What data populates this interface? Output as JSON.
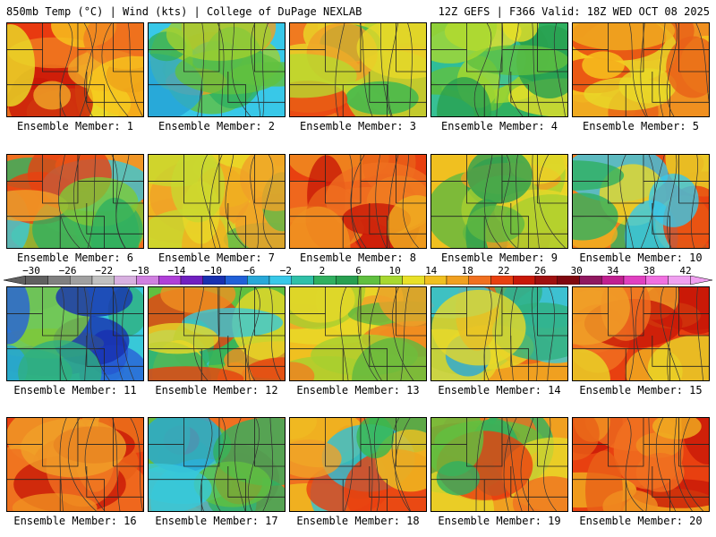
{
  "header": {
    "left": "850mb Temp (°C) | Wind (kts) | College of DuPage NEXLAB",
    "right": "12Z GEFS | F366 Valid: 18Z WED OCT 08 2025"
  },
  "panel_label_prefix": "Ensemble Member: ",
  "members": [
    {
      "label": "Ensemble Member: 1",
      "palette": [
        "#e83a10",
        "#c81808",
        "#f08020",
        "#f0a828",
        "#f7c81e",
        "#e8e028"
      ]
    },
    {
      "label": "Ensemble Member: 2",
      "palette": [
        "#38c8e8",
        "#28a8d8",
        "#30b060",
        "#60c040",
        "#a0d030",
        "#f0a020"
      ]
    },
    {
      "label": "Ensemble Member: 3",
      "palette": [
        "#f07a20",
        "#e84010",
        "#f0a028",
        "#e8d828",
        "#b8d830",
        "#38b850"
      ]
    },
    {
      "label": "Ensemble Member: 4",
      "palette": [
        "#30b060",
        "#28a050",
        "#60c040",
        "#a8d830",
        "#e8e028",
        "#30c0a8"
      ]
    },
    {
      "label": "Ensemble Member: 5",
      "palette": [
        "#f09020",
        "#f0b020",
        "#e86018",
        "#e8d828",
        "#f7c81e",
        "#e84010"
      ]
    },
    {
      "label": "Ensemble Member: 6",
      "palette": [
        "#f07020",
        "#e84010",
        "#f0a028",
        "#80c838",
        "#30b060",
        "#38c8d8"
      ]
    },
    {
      "label": "Ensemble Member: 7",
      "palette": [
        "#f0c020",
        "#f0b020",
        "#e8d828",
        "#f0a028",
        "#c8d830",
        "#60b848"
      ]
    },
    {
      "label": "Ensemble Member: 8",
      "palette": [
        "#e84010",
        "#f07020",
        "#c81808",
        "#f09020",
        "#f0b020",
        "#e86018"
      ]
    },
    {
      "label": "Ensemble Member: 9",
      "palette": [
        "#f0c020",
        "#e8d828",
        "#a8d030",
        "#60b840",
        "#30a050",
        "#f0a020"
      ]
    },
    {
      "label": "Ensemble Member: 10",
      "palette": [
        "#f08020",
        "#e84010",
        "#f0b020",
        "#38c8e8",
        "#30b060",
        "#e8d828"
      ]
    },
    {
      "label": "Ensemble Member: 11",
      "palette": [
        "#38c8d8",
        "#28a8d8",
        "#30b080",
        "#2860d8",
        "#1830b0",
        "#80c838"
      ]
    },
    {
      "label": "Ensemble Member: 12",
      "palette": [
        "#60c040",
        "#30b060",
        "#f09020",
        "#e84010",
        "#e8d828",
        "#38c8d8"
      ]
    },
    {
      "label": "Ensemble Member: 13",
      "palette": [
        "#f0c020",
        "#e8d828",
        "#f0a028",
        "#a8d030",
        "#60b840",
        "#f08020"
      ]
    },
    {
      "label": "Ensemble Member: 14",
      "palette": [
        "#f0a020",
        "#e86018",
        "#38c8d8",
        "#30b080",
        "#e8d828",
        "#28a8d8"
      ]
    },
    {
      "label": "Ensemble Member: 15",
      "palette": [
        "#e84010",
        "#c81808",
        "#f07020",
        "#f0a028",
        "#e8d828",
        "#f0b020"
      ]
    },
    {
      "label": "Ensemble Member: 16",
      "palette": [
        "#e84010",
        "#f07020",
        "#c81808",
        "#f09020",
        "#f0a028",
        "#e86018"
      ]
    },
    {
      "label": "Ensemble Member: 17",
      "palette": [
        "#f07020",
        "#e84010",
        "#30b060",
        "#60c040",
        "#38c8d8",
        "#28a8d8"
      ]
    },
    {
      "label": "Ensemble Member: 18",
      "palette": [
        "#f07020",
        "#e84010",
        "#f0a028",
        "#f0c020",
        "#38b850",
        "#30c0d8"
      ]
    },
    {
      "label": "Ensemble Member: 19",
      "palette": [
        "#f0a020",
        "#f07020",
        "#e84010",
        "#60c040",
        "#30b060",
        "#e8d828"
      ]
    },
    {
      "label": "Ensemble Member: 20",
      "palette": [
        "#e84010",
        "#c81808",
        "#f07020",
        "#f09020",
        "#f0b020",
        "#e86018"
      ]
    }
  ],
  "colorbar": {
    "ticks": [
      "−30",
      "−26",
      "−22",
      "−18",
      "−14",
      "−10",
      "−6",
      "−2",
      "2",
      "6",
      "10",
      "14",
      "18",
      "22",
      "26",
      "30",
      "34",
      "38",
      "42"
    ],
    "colors": [
      "#606060",
      "#808080",
      "#a0a0a0",
      "#c0c0c0",
      "#d8b0e0",
      "#d080e0",
      "#b040d8",
      "#7020c0",
      "#1830b0",
      "#2060d8",
      "#28a8d8",
      "#38c8e8",
      "#30c0a8",
      "#30b060",
      "#28a050",
      "#60c040",
      "#a8d830",
      "#e8e028",
      "#f0c020",
      "#f0a020",
      "#f07020",
      "#e84010",
      "#c81808",
      "#a01010",
      "#800810",
      "#901860",
      "#c02090",
      "#e040c0",
      "#f070e0",
      "#f0a0f0"
    ]
  }
}
